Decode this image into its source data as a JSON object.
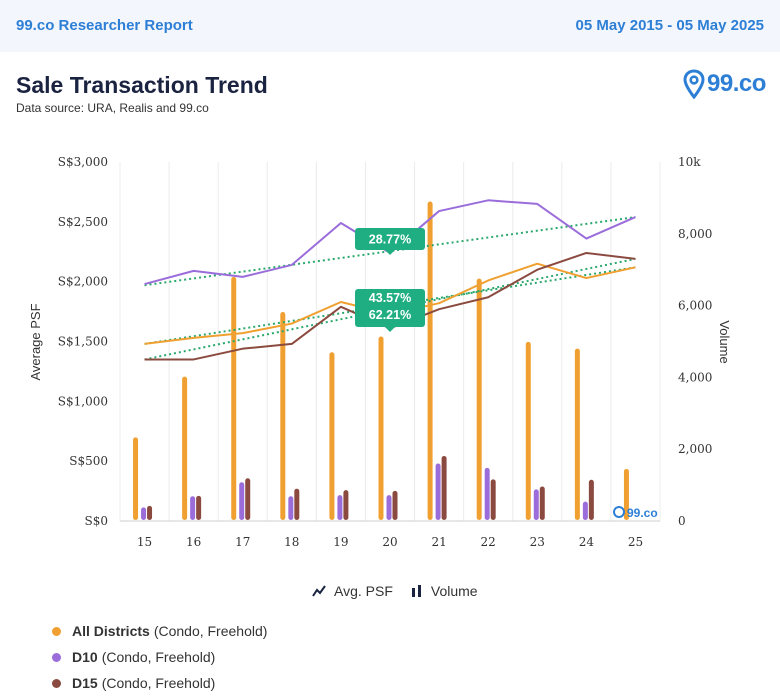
{
  "header": {
    "report_name": "99.co Researcher Report",
    "date_range": "05 May 2015 - 05 May 2025"
  },
  "title": "Sale Transaction Trend",
  "subtitle": "Data source: URA, Realis and 99.co",
  "logo_text": "99.co",
  "watermark_text": "99.co",
  "toggles": {
    "avg_psf": "Avg. PSF",
    "volume": "Volume"
  },
  "legend": [
    {
      "name": "All Districts",
      "detail": "(Condo, Freehold)",
      "color": "#f0a030"
    },
    {
      "name": "D10",
      "detail": "(Condo, Freehold)",
      "color": "#9a6ddb"
    },
    {
      "name": "D15",
      "detail": "(Condo, Freehold)",
      "color": "#8b4a3f"
    }
  ],
  "chart_data": {
    "type": "bar+line",
    "categories": [
      "15",
      "16",
      "17",
      "18",
      "19",
      "20",
      "21",
      "22",
      "23",
      "24",
      "25"
    ],
    "y_left": {
      "label": "Average PSF",
      "min": 0,
      "max": 3000,
      "ticks": [
        "S$0",
        "S$500",
        "S$1,000",
        "S$1,500",
        "S$2,000",
        "S$2,500",
        "S$3,000"
      ]
    },
    "y_right": {
      "label": "Volume",
      "min": 0,
      "max": 10000,
      "ticks": [
        "0",
        "2,000",
        "4,000",
        "6,000",
        "8,000",
        "10k"
      ]
    },
    "volume_series": [
      {
        "name": "All Districts",
        "color": "#f0a030",
        "values": [
          2330,
          4020,
          6800,
          5820,
          4700,
          5140,
          8900,
          6750,
          4990,
          4800,
          1450
        ]
      },
      {
        "name": "D10",
        "color": "#9a6ddb",
        "values": [
          380,
          690,
          1080,
          690,
          720,
          720,
          1600,
          1480,
          880,
          540,
          0
        ]
      },
      {
        "name": "D15",
        "color": "#8b4a3f",
        "values": [
          420,
          700,
          1190,
          900,
          860,
          840,
          1810,
          1160,
          960,
          1150,
          0
        ]
      }
    ],
    "psf_series": [
      {
        "name": "All Districts",
        "color": "#f0a030",
        "values": [
          1480,
          1530,
          1570,
          1650,
          1830,
          1730,
          1820,
          2010,
          2150,
          2030,
          2120
        ]
      },
      {
        "name": "D10",
        "color": "#9a6ddb",
        "values": [
          1980,
          2090,
          2040,
          2140,
          2490,
          2240,
          2590,
          2680,
          2650,
          2360,
          2540
        ]
      },
      {
        "name": "D15",
        "color": "#8b4a3f",
        "values": [
          1350,
          1350,
          1440,
          1480,
          1790,
          1610,
          1770,
          1870,
          2100,
          2240,
          2190
        ]
      }
    ],
    "trendlines": [
      {
        "series": "All Districts",
        "start": 1480,
        "end": 2120,
        "color": "#2aa86b"
      },
      {
        "series": "D10",
        "start": 1970,
        "end": 2540,
        "color": "#2aa86b"
      },
      {
        "series": "D15",
        "start": 1350,
        "end": 2190,
        "color": "#2aa86b"
      }
    ],
    "annotations": [
      {
        "text": "28.77%",
        "series": "D10"
      },
      {
        "text": "43.57%\n62.21%",
        "series": "All Districts, D15"
      }
    ]
  }
}
